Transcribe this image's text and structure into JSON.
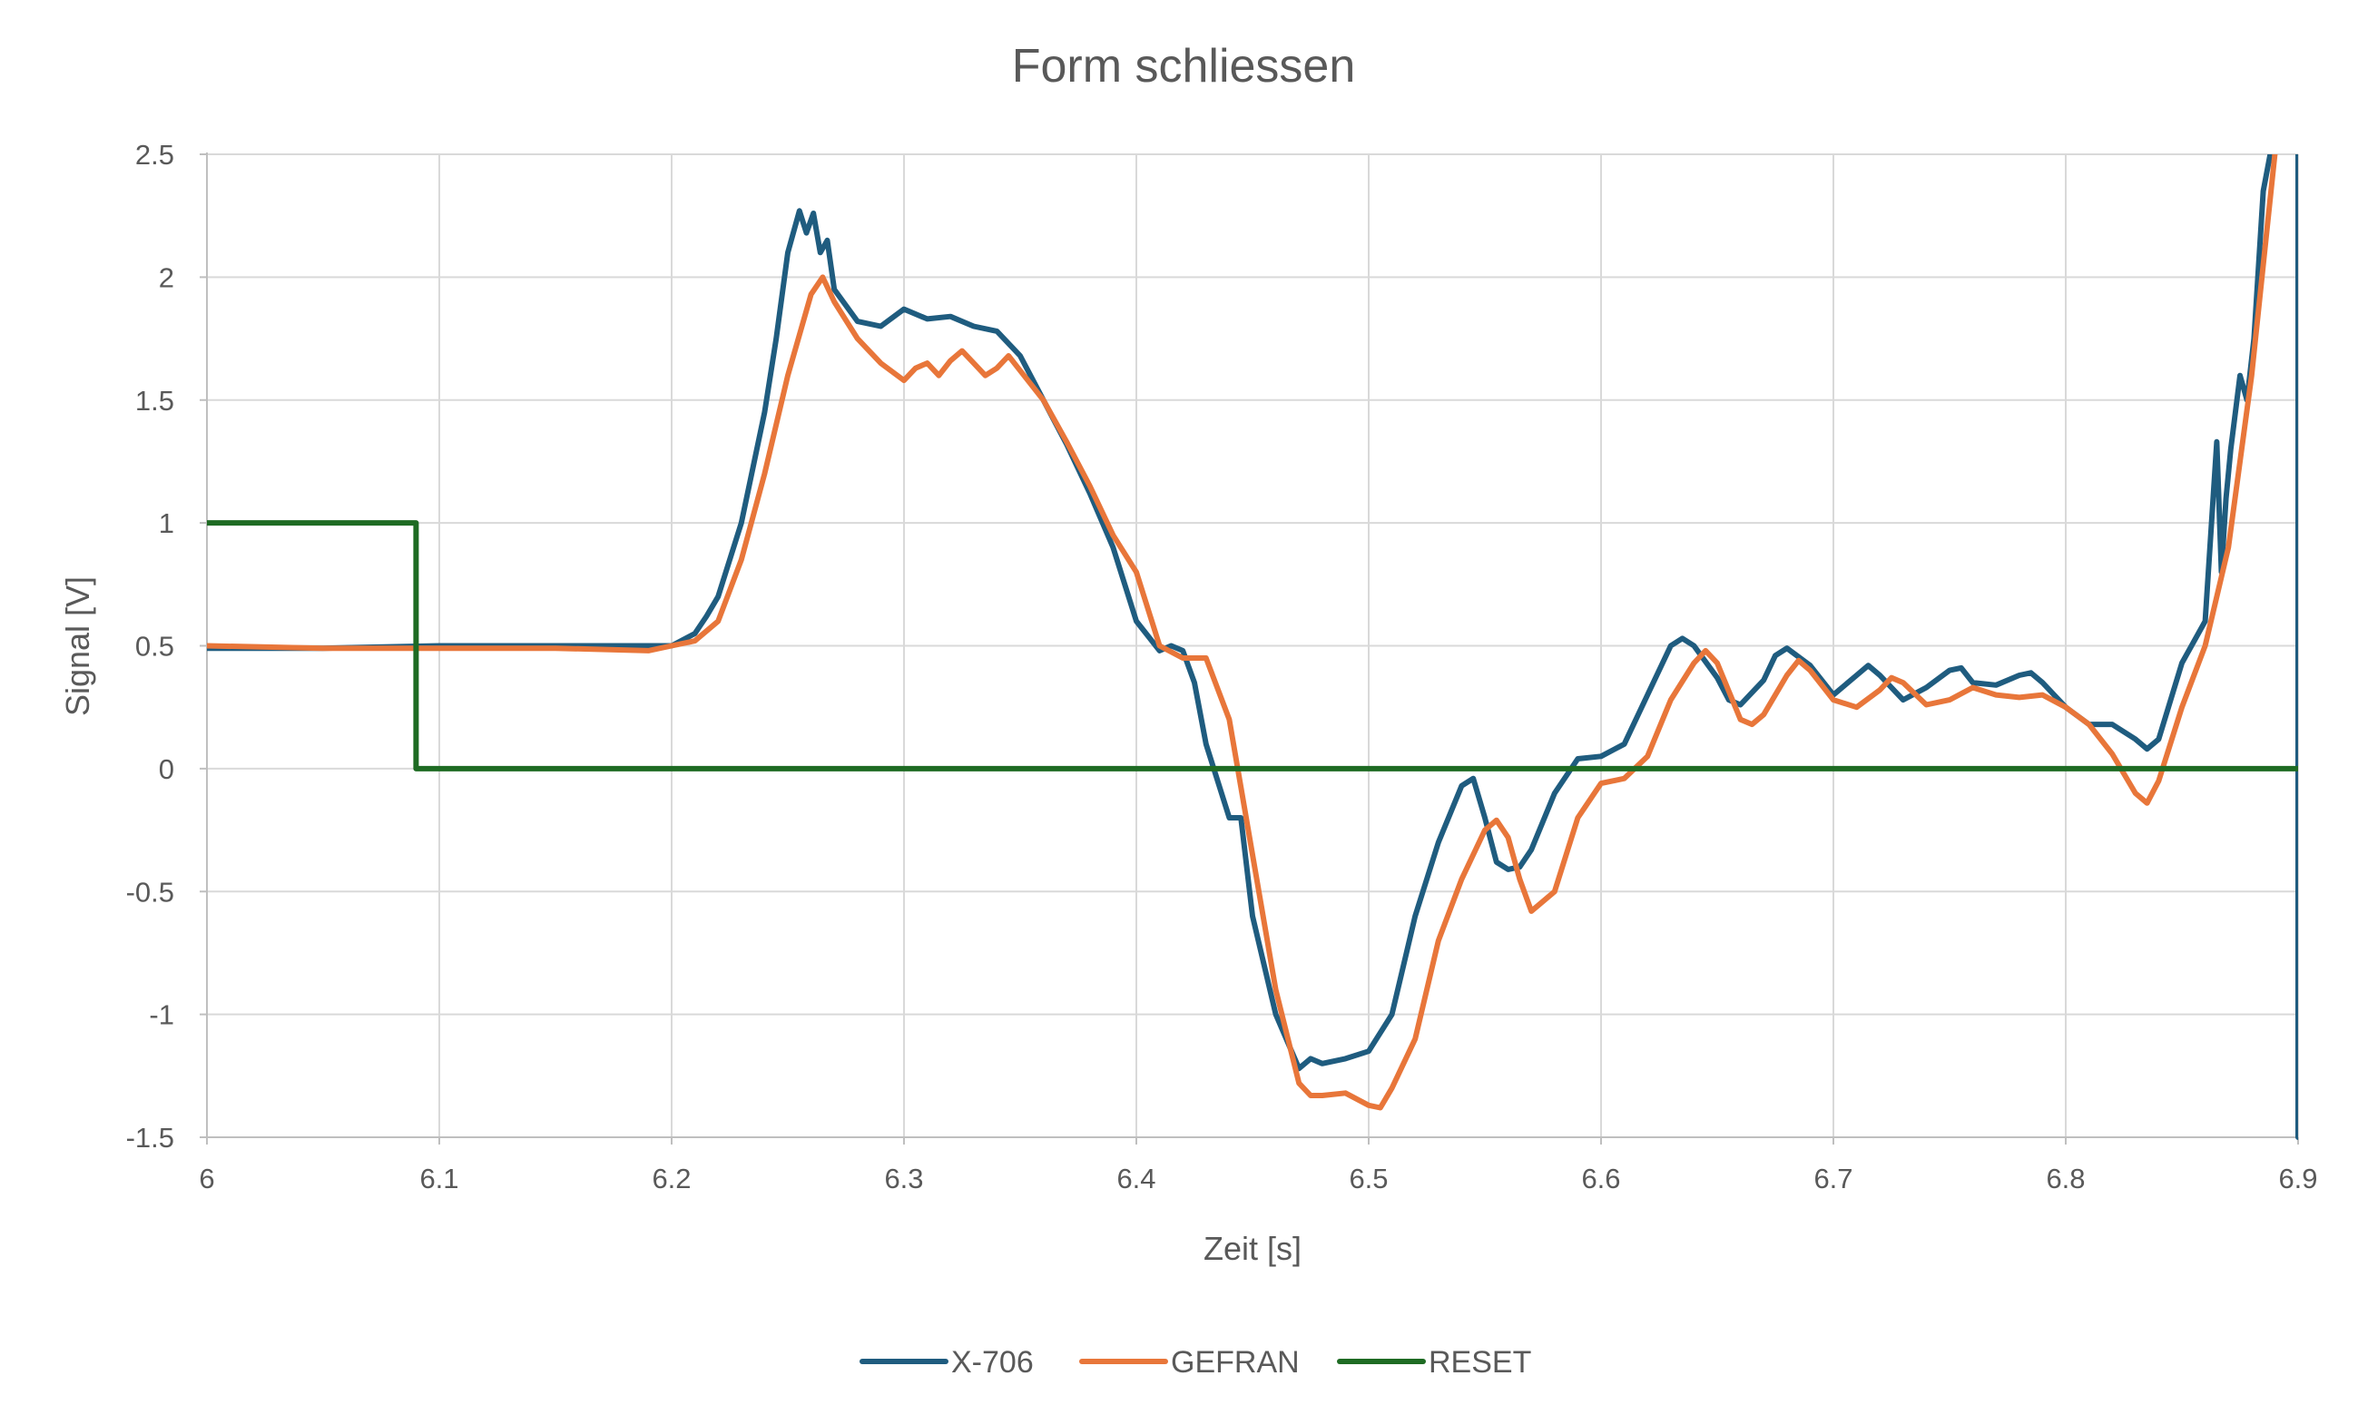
{
  "chart_data": {
    "type": "line",
    "title": "Form schliessen",
    "xlabel": "Zeit [s]",
    "ylabel": "Signal [V]",
    "xlim": [
      6,
      6.9
    ],
    "ylim": [
      -1.5,
      2.5
    ],
    "x_ticks": [
      "6",
      "6.1",
      "6.2",
      "6.3",
      "6.4",
      "6.5",
      "6.6",
      "6.7",
      "6.8",
      "6.9"
    ],
    "y_ticks": [
      "2.5",
      "2",
      "1.5",
      "1",
      "0.5",
      "0",
      "-0.5",
      "-1",
      "-1.5"
    ],
    "grid": true,
    "legend_position": "bottom",
    "series": [
      {
        "name": "X-706",
        "color": "#1f5c7f",
        "x": [
          6.0,
          6.05,
          6.1,
          6.15,
          6.19,
          6.2,
          6.21,
          6.215,
          6.22,
          6.23,
          6.24,
          6.245,
          6.25,
          6.255,
          6.258,
          6.261,
          6.264,
          6.267,
          6.27,
          6.28,
          6.29,
          6.3,
          6.31,
          6.32,
          6.33,
          6.34,
          6.35,
          6.36,
          6.37,
          6.38,
          6.39,
          6.4,
          6.41,
          6.415,
          6.42,
          6.425,
          6.43,
          6.44,
          6.445,
          6.45,
          6.46,
          6.47,
          6.475,
          6.48,
          6.49,
          6.5,
          6.51,
          6.52,
          6.53,
          6.54,
          6.545,
          6.55,
          6.555,
          6.56,
          6.565,
          6.57,
          6.58,
          6.59,
          6.6,
          6.61,
          6.62,
          6.63,
          6.635,
          6.64,
          6.65,
          6.655,
          6.66,
          6.67,
          6.675,
          6.68,
          6.69,
          6.7,
          6.71,
          6.715,
          6.72,
          6.73,
          6.74,
          6.75,
          6.755,
          6.76,
          6.77,
          6.78,
          6.785,
          6.79,
          6.8,
          6.81,
          6.82,
          6.83,
          6.835,
          6.84,
          6.85,
          6.86,
          6.865,
          6.867,
          6.869,
          6.871,
          6.875,
          6.878,
          6.881,
          6.885,
          6.889,
          6.895,
          6.899,
          6.9,
          6.9
        ],
        "y": [
          0.49,
          0.49,
          0.5,
          0.5,
          0.5,
          0.5,
          0.55,
          0.62,
          0.7,
          1.0,
          1.45,
          1.75,
          2.1,
          2.27,
          2.18,
          2.26,
          2.1,
          2.15,
          1.95,
          1.82,
          1.8,
          1.87,
          1.83,
          1.84,
          1.8,
          1.78,
          1.68,
          1.5,
          1.32,
          1.12,
          0.9,
          0.6,
          0.48,
          0.5,
          0.48,
          0.35,
          0.1,
          -0.2,
          -0.2,
          -0.6,
          -1.0,
          -1.22,
          -1.18,
          -1.2,
          -1.18,
          -1.15,
          -1.0,
          -0.6,
          -0.3,
          -0.07,
          -0.04,
          -0.2,
          -0.38,
          -0.41,
          -0.4,
          -0.33,
          -0.1,
          0.04,
          0.05,
          0.1,
          0.3,
          0.5,
          0.53,
          0.5,
          0.37,
          0.28,
          0.26,
          0.36,
          0.46,
          0.49,
          0.42,
          0.3,
          0.38,
          0.42,
          0.38,
          0.28,
          0.33,
          0.4,
          0.41,
          0.35,
          0.34,
          0.38,
          0.39,
          0.35,
          0.25,
          0.18,
          0.18,
          0.12,
          0.08,
          0.12,
          0.43,
          0.6,
          1.33,
          0.8,
          1.1,
          1.3,
          1.6,
          1.5,
          1.75,
          2.35,
          2.55,
          2.7,
          2.7,
          2.6,
          -1.5
        ]
      },
      {
        "name": "GEFRAN",
        "color": "#e8763a",
        "x": [
          6.0,
          6.05,
          6.1,
          6.15,
          6.19,
          6.2,
          6.21,
          6.22,
          6.23,
          6.24,
          6.25,
          6.26,
          6.265,
          6.27,
          6.28,
          6.29,
          6.3,
          6.305,
          6.31,
          6.315,
          6.32,
          6.325,
          6.33,
          6.335,
          6.34,
          6.345,
          6.35,
          6.36,
          6.37,
          6.38,
          6.39,
          6.4,
          6.41,
          6.42,
          6.43,
          6.44,
          6.45,
          6.46,
          6.47,
          6.475,
          6.48,
          6.49,
          6.5,
          6.505,
          6.51,
          6.52,
          6.53,
          6.54,
          6.55,
          6.555,
          6.56,
          6.565,
          6.57,
          6.58,
          6.59,
          6.6,
          6.61,
          6.62,
          6.63,
          6.64,
          6.645,
          6.65,
          6.66,
          6.665,
          6.67,
          6.68,
          6.685,
          6.69,
          6.7,
          6.71,
          6.72,
          6.725,
          6.73,
          6.74,
          6.75,
          6.76,
          6.77,
          6.78,
          6.79,
          6.8,
          6.81,
          6.82,
          6.83,
          6.835,
          6.84,
          6.85,
          6.86,
          6.87,
          6.88,
          6.885,
          6.89,
          6.893
        ],
        "y": [
          0.5,
          0.49,
          0.49,
          0.49,
          0.48,
          0.5,
          0.52,
          0.6,
          0.85,
          1.2,
          1.6,
          1.93,
          2.0,
          1.9,
          1.75,
          1.65,
          1.58,
          1.63,
          1.65,
          1.6,
          1.66,
          1.7,
          1.65,
          1.6,
          1.63,
          1.68,
          1.62,
          1.5,
          1.33,
          1.15,
          0.95,
          0.8,
          0.5,
          0.45,
          0.45,
          0.2,
          -0.35,
          -0.9,
          -1.28,
          -1.33,
          -1.33,
          -1.32,
          -1.37,
          -1.38,
          -1.3,
          -1.1,
          -0.7,
          -0.45,
          -0.25,
          -0.21,
          -0.28,
          -0.45,
          -0.58,
          -0.5,
          -0.2,
          -0.06,
          -0.04,
          0.05,
          0.28,
          0.43,
          0.48,
          0.43,
          0.2,
          0.18,
          0.22,
          0.38,
          0.44,
          0.4,
          0.28,
          0.25,
          0.32,
          0.37,
          0.35,
          0.26,
          0.28,
          0.33,
          0.3,
          0.29,
          0.3,
          0.25,
          0.18,
          0.06,
          -0.1,
          -0.14,
          -0.05,
          0.25,
          0.5,
          0.9,
          1.6,
          2.05,
          2.5,
          2.75
        ]
      },
      {
        "name": "RESET",
        "color": "#1e6b23",
        "x": [
          6.0,
          6.09,
          6.09,
          6.9
        ],
        "y": [
          1.0,
          1.0,
          0.0,
          0.0
        ]
      }
    ]
  }
}
